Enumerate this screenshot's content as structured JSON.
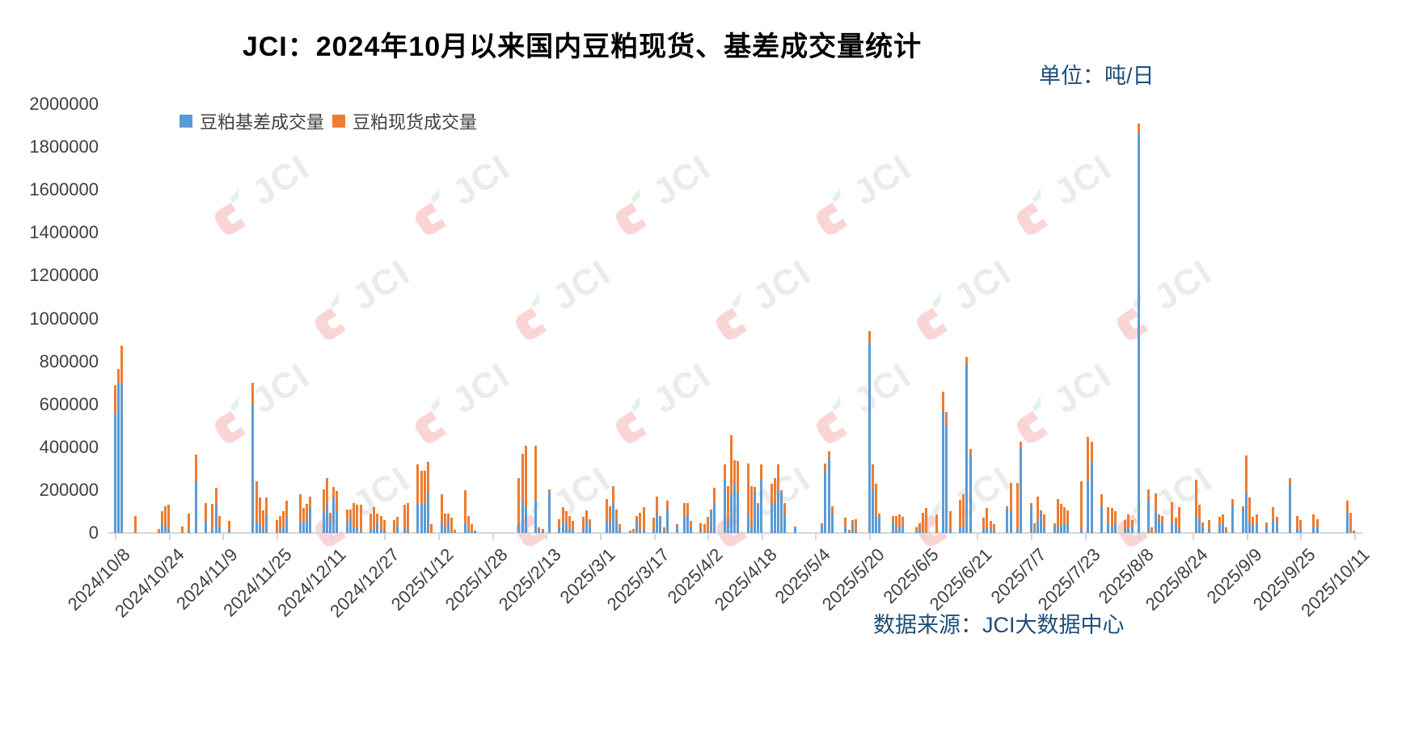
{
  "title": "JCI：2024年10月以来国内豆粕现货、基差成交量统计",
  "unit_label": "单位：吨/日",
  "source_label": "数据来源：JCI大数据中心",
  "watermark_text": "JCI",
  "colors": {
    "basis_blue": "#5B9BD5",
    "spot_orange": "#ED7D31",
    "note_navy": "#1F4E79",
    "axis_text": "#404040",
    "axis_line": "#D6D6D6",
    "watermark_gray": "#DCDCDC",
    "watermark_pink": "#F6B3B6",
    "watermark_green": "#CDE8D2"
  },
  "legend": [
    {
      "label": "豆粕基差成交量",
      "color": "#5B9BD5"
    },
    {
      "label": "豆粕现货成交量",
      "color": "#ED7D31"
    }
  ],
  "chart_data": {
    "type": "bar",
    "stacked": true,
    "title": "JCI：2024年10月以来国内豆粕现货、基差成交量统计",
    "ylabel": "吨/日",
    "ylim": [
      0,
      2000000
    ],
    "y_tick_interval": 200000,
    "grid": false,
    "legend_position": "top-left-inside",
    "start_date": "2024-10-08",
    "end_date": "2025-10-11",
    "x_label_interval_days": 16,
    "x_tick_labels": [
      "2024/10/8",
      "2024/10/24",
      "2024/11/9",
      "2024/11/25",
      "2024/12/11",
      "2024/12/27",
      "2025/1/12",
      "2025/1/28",
      "2025/2/13",
      "2025/3/1",
      "2025/3/17",
      "2025/4/2",
      "2025/4/18",
      "2025/5/4",
      "2025/5/20",
      "2025/6/5",
      "2025/6/21",
      "2025/7/7",
      "2025/7/23",
      "2025/8/8",
      "2025/8/24",
      "2025/9/9",
      "2025/9/25",
      "2025/10/11"
    ],
    "series_names": [
      "豆粕基差成交量",
      "豆粕现货成交量"
    ],
    "points_format": [
      "date",
      "basis_volume_tons_blue",
      "spot_volume_tons_orange"
    ],
    "points": [
      [
        "2024-10-08",
        560000,
        130000
      ],
      [
        "2024-10-09",
        700000,
        65000
      ],
      [
        "2024-10-10",
        700000,
        175000
      ],
      [
        "2024-10-14",
        0,
        80000
      ],
      [
        "2024-10-21",
        0,
        20000
      ],
      [
        "2024-10-22",
        40000,
        60000
      ],
      [
        "2024-10-23",
        30000,
        95000
      ],
      [
        "2024-10-24",
        15000,
        115000
      ],
      [
        "2024-10-28",
        0,
        30000
      ],
      [
        "2024-10-30",
        10000,
        80000
      ],
      [
        "2024-11-01",
        240000,
        125000
      ],
      [
        "2024-11-04",
        55000,
        85000
      ],
      [
        "2024-11-06",
        15000,
        120000
      ],
      [
        "2024-11-07",
        130000,
        80000
      ],
      [
        "2024-11-08",
        25000,
        55000
      ],
      [
        "2024-11-11",
        10000,
        45000
      ],
      [
        "2024-11-18",
        600000,
        100000
      ],
      [
        "2024-11-19",
        50000,
        190000
      ],
      [
        "2024-11-20",
        45000,
        120000
      ],
      [
        "2024-11-21",
        20000,
        85000
      ],
      [
        "2024-11-22",
        80000,
        85000
      ],
      [
        "2024-11-25",
        0,
        60000
      ],
      [
        "2024-11-26",
        20000,
        60000
      ],
      [
        "2024-11-27",
        25000,
        75000
      ],
      [
        "2024-11-28",
        70000,
        80000
      ],
      [
        "2024-12-02",
        50000,
        130000
      ],
      [
        "2024-12-03",
        55000,
        60000
      ],
      [
        "2024-12-04",
        55000,
        80000
      ],
      [
        "2024-12-05",
        120000,
        50000
      ],
      [
        "2024-12-09",
        95000,
        110000
      ],
      [
        "2024-12-10",
        130000,
        125000
      ],
      [
        "2024-12-11",
        60000,
        35000
      ],
      [
        "2024-12-12",
        165000,
        50000
      ],
      [
        "2024-12-13",
        100000,
        95000
      ],
      [
        "2024-12-16",
        50000,
        60000
      ],
      [
        "2024-12-17",
        70000,
        40000
      ],
      [
        "2024-12-18",
        25000,
        115000
      ],
      [
        "2024-12-19",
        30000,
        100000
      ],
      [
        "2024-12-20",
        10000,
        120000
      ],
      [
        "2024-12-23",
        20000,
        70000
      ],
      [
        "2024-12-24",
        15000,
        105000
      ],
      [
        "2024-12-25",
        50000,
        40000
      ],
      [
        "2024-12-26",
        20000,
        60000
      ],
      [
        "2024-12-27",
        10000,
        50000
      ],
      [
        "2024-12-30",
        0,
        60000
      ],
      [
        "2024-12-31",
        35000,
        40000
      ],
      [
        "2025-01-02",
        25000,
        105000
      ],
      [
        "2025-01-03",
        10000,
        130000
      ],
      [
        "2025-01-06",
        140000,
        180000
      ],
      [
        "2025-01-07",
        135000,
        155000
      ],
      [
        "2025-01-08",
        135000,
        155000
      ],
      [
        "2025-01-09",
        190000,
        140000
      ],
      [
        "2025-01-10",
        0,
        40000
      ],
      [
        "2025-01-13",
        50000,
        130000
      ],
      [
        "2025-01-14",
        25000,
        65000
      ],
      [
        "2025-01-15",
        55000,
        35000
      ],
      [
        "2025-01-16",
        5000,
        65000
      ],
      [
        "2025-01-17",
        5000,
        10000
      ],
      [
        "2025-01-20",
        40000,
        160000
      ],
      [
        "2025-01-21",
        10000,
        70000
      ],
      [
        "2025-01-22",
        5000,
        35000
      ],
      [
        "2025-01-23",
        10000,
        0
      ],
      [
        "2025-02-05",
        45000,
        210000
      ],
      [
        "2025-02-06",
        150000,
        220000
      ],
      [
        "2025-02-07",
        115000,
        290000
      ],
      [
        "2025-02-10",
        150000,
        255000
      ],
      [
        "2025-02-11",
        10000,
        15000
      ],
      [
        "2025-02-12",
        10000,
        10000
      ],
      [
        "2025-02-14",
        190000,
        15000
      ],
      [
        "2025-02-17",
        25000,
        40000
      ],
      [
        "2025-02-18",
        45000,
        75000
      ],
      [
        "2025-02-19",
        55000,
        45000
      ],
      [
        "2025-02-20",
        15000,
        65000
      ],
      [
        "2025-02-21",
        20000,
        35000
      ],
      [
        "2025-02-24",
        15000,
        60000
      ],
      [
        "2025-02-25",
        65000,
        40000
      ],
      [
        "2025-02-26",
        35000,
        30000
      ],
      [
        "2025-03-03",
        55000,
        105000
      ],
      [
        "2025-03-04",
        45000,
        80000
      ],
      [
        "2025-03-05",
        140000,
        80000
      ],
      [
        "2025-03-06",
        65000,
        45000
      ],
      [
        "2025-03-07",
        15000,
        25000
      ],
      [
        "2025-03-10",
        10000,
        0
      ],
      [
        "2025-03-11",
        0,
        20000
      ],
      [
        "2025-03-12",
        65000,
        15000
      ],
      [
        "2025-03-13",
        10000,
        85000
      ],
      [
        "2025-03-14",
        15000,
        105000
      ],
      [
        "2025-03-17",
        20000,
        50000
      ],
      [
        "2025-03-18",
        95000,
        75000
      ],
      [
        "2025-03-19",
        75000,
        5000
      ],
      [
        "2025-03-20",
        10000,
        15000
      ],
      [
        "2025-03-21",
        110000,
        40000
      ],
      [
        "2025-03-24",
        35000,
        5000
      ],
      [
        "2025-03-26",
        70000,
        70000
      ],
      [
        "2025-03-27",
        85000,
        55000
      ],
      [
        "2025-03-28",
        25000,
        30000
      ],
      [
        "2025-03-31",
        10000,
        35000
      ],
      [
        "2025-04-01",
        5000,
        35000
      ],
      [
        "2025-04-02",
        5000,
        70000
      ],
      [
        "2025-04-03",
        100000,
        10000
      ],
      [
        "2025-04-04",
        140000,
        70000
      ],
      [
        "2025-04-07",
        250000,
        70000
      ],
      [
        "2025-04-08",
        55000,
        165000
      ],
      [
        "2025-04-09",
        185000,
        270000
      ],
      [
        "2025-04-10",
        235000,
        105000
      ],
      [
        "2025-04-11",
        190000,
        145000
      ],
      [
        "2025-04-14",
        85000,
        240000
      ],
      [
        "2025-04-15",
        35000,
        185000
      ],
      [
        "2025-04-16",
        195000,
        20000
      ],
      [
        "2025-04-17",
        125000,
        15000
      ],
      [
        "2025-04-18",
        250000,
        70000
      ],
      [
        "2025-04-21",
        140000,
        90000
      ],
      [
        "2025-04-22",
        140000,
        115000
      ],
      [
        "2025-04-23",
        205000,
        115000
      ],
      [
        "2025-04-24",
        190000,
        10000
      ],
      [
        "2025-04-25",
        85000,
        55000
      ],
      [
        "2025-04-28",
        25000,
        5000
      ],
      [
        "2025-05-06",
        35000,
        10000
      ],
      [
        "2025-05-07",
        290000,
        35000
      ],
      [
        "2025-05-08",
        350000,
        30000
      ],
      [
        "2025-05-09",
        90000,
        35000
      ],
      [
        "2025-05-13",
        30000,
        40000
      ],
      [
        "2025-05-14",
        5000,
        10000
      ],
      [
        "2025-05-15",
        45000,
        15000
      ],
      [
        "2025-05-16",
        5000,
        60000
      ],
      [
        "2025-05-20",
        890000,
        50000
      ],
      [
        "2025-05-21",
        200000,
        120000
      ],
      [
        "2025-05-22",
        80000,
        150000
      ],
      [
        "2025-05-23",
        70000,
        20000
      ],
      [
        "2025-05-27",
        50000,
        30000
      ],
      [
        "2025-05-28",
        15000,
        65000
      ],
      [
        "2025-05-29",
        35000,
        50000
      ],
      [
        "2025-05-30",
        25000,
        50000
      ],
      [
        "2025-06-03",
        5000,
        20000
      ],
      [
        "2025-06-04",
        20000,
        25000
      ],
      [
        "2025-06-05",
        5000,
        90000
      ],
      [
        "2025-06-06",
        0,
        115000
      ],
      [
        "2025-06-09",
        0,
        85000
      ],
      [
        "2025-06-11",
        570000,
        90000
      ],
      [
        "2025-06-12",
        500000,
        65000
      ],
      [
        "2025-06-13",
        20000,
        80000
      ],
      [
        "2025-06-16",
        25000,
        130000
      ],
      [
        "2025-06-17",
        30000,
        150000
      ],
      [
        "2025-06-18",
        785000,
        35000
      ],
      [
        "2025-06-19",
        360000,
        30000
      ],
      [
        "2025-06-23",
        15000,
        55000
      ],
      [
        "2025-06-24",
        25000,
        90000
      ],
      [
        "2025-06-25",
        20000,
        35000
      ],
      [
        "2025-06-26",
        10000,
        30000
      ],
      [
        "2025-06-30",
        110000,
        15000
      ],
      [
        "2025-07-01",
        105000,
        130000
      ],
      [
        "2025-07-03",
        15000,
        220000
      ],
      [
        "2025-07-04",
        395000,
        30000
      ],
      [
        "2025-07-07",
        125000,
        15000
      ],
      [
        "2025-07-08",
        10000,
        35000
      ],
      [
        "2025-07-09",
        55000,
        115000
      ],
      [
        "2025-07-10",
        95000,
        10000
      ],
      [
        "2025-07-11",
        30000,
        55000
      ],
      [
        "2025-07-14",
        35000,
        10000
      ],
      [
        "2025-07-15",
        30000,
        130000
      ],
      [
        "2025-07-16",
        35000,
        100000
      ],
      [
        "2025-07-17",
        40000,
        80000
      ],
      [
        "2025-07-18",
        45000,
        60000
      ],
      [
        "2025-07-22",
        15000,
        225000
      ],
      [
        "2025-07-24",
        240000,
        210000
      ],
      [
        "2025-07-25",
        330000,
        95000
      ],
      [
        "2025-07-28",
        125000,
        55000
      ],
      [
        "2025-07-30",
        45000,
        75000
      ],
      [
        "2025-07-31",
        30000,
        85000
      ],
      [
        "2025-08-01",
        40000,
        60000
      ],
      [
        "2025-08-04",
        20000,
        40000
      ],
      [
        "2025-08-05",
        25000,
        60000
      ],
      [
        "2025-08-06",
        30000,
        30000
      ],
      [
        "2025-08-08",
        1860000,
        50000
      ],
      [
        "2025-08-11",
        160000,
        45000
      ],
      [
        "2025-08-12",
        0,
        25000
      ],
      [
        "2025-08-13",
        105000,
        80000
      ],
      [
        "2025-08-14",
        65000,
        20000
      ],
      [
        "2025-08-15",
        45000,
        35000
      ],
      [
        "2025-08-18",
        50000,
        95000
      ],
      [
        "2025-08-19",
        40000,
        30000
      ],
      [
        "2025-08-20",
        15000,
        105000
      ],
      [
        "2025-08-25",
        85000,
        165000
      ],
      [
        "2025-08-26",
        55000,
        75000
      ],
      [
        "2025-08-27",
        30000,
        20000
      ],
      [
        "2025-08-29",
        20000,
        40000
      ],
      [
        "2025-09-01",
        35000,
        40000
      ],
      [
        "2025-09-02",
        45000,
        40000
      ],
      [
        "2025-09-03",
        10000,
        15000
      ],
      [
        "2025-09-05",
        125000,
        35000
      ],
      [
        "2025-09-08",
        110000,
        15000
      ],
      [
        "2025-09-09",
        190000,
        170000
      ],
      [
        "2025-09-10",
        50000,
        115000
      ],
      [
        "2025-09-11",
        35000,
        40000
      ],
      [
        "2025-09-12",
        40000,
        45000
      ],
      [
        "2025-09-15",
        30000,
        20000
      ],
      [
        "2025-09-17",
        60000,
        60000
      ],
      [
        "2025-09-18",
        45000,
        30000
      ],
      [
        "2025-09-22",
        230000,
        25000
      ],
      [
        "2025-09-24",
        20000,
        60000
      ],
      [
        "2025-09-25",
        15000,
        45000
      ],
      [
        "2025-09-29",
        30000,
        55000
      ],
      [
        "2025-09-30",
        25000,
        40000
      ],
      [
        "2025-10-09",
        90000,
        60000
      ],
      [
        "2025-10-10",
        0,
        95000
      ],
      [
        "2025-10-11",
        0,
        10000
      ]
    ]
  }
}
